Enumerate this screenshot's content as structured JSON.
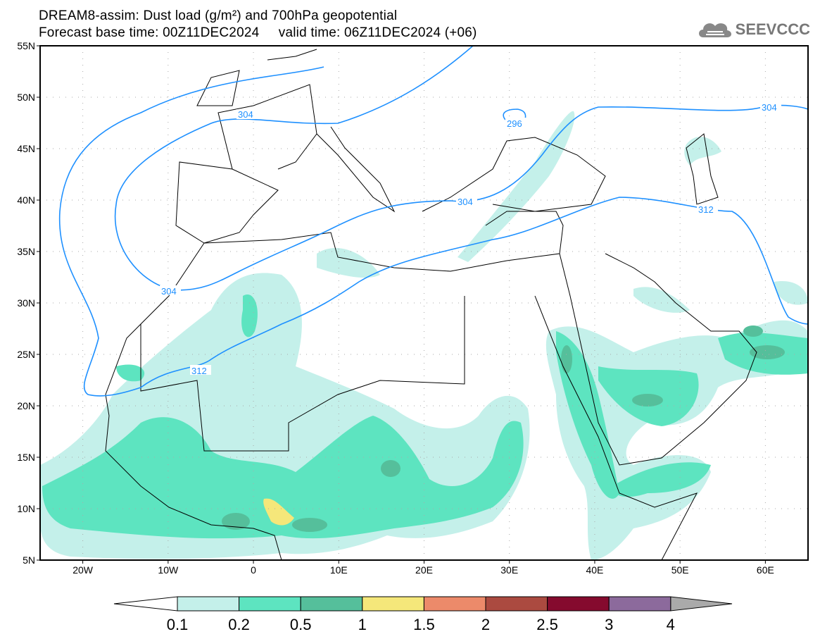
{
  "header": {
    "title": "DREAM8-assim: Dust load (g/m²) and 700hPa geopotential",
    "subtitle": "Forecast base time: 00Z11DEC2024     valid time: 06Z11DEC2024 (+06)",
    "logo_text": "SEEVCCC",
    "logo_icon": "cloud-icon"
  },
  "map": {
    "lat_range": [
      5,
      55
    ],
    "lon_range": [
      -25,
      65
    ],
    "lat_labels": [
      {
        "v": 55,
        "t": "55N"
      },
      {
        "v": 50,
        "t": "50N"
      },
      {
        "v": 45,
        "t": "45N"
      },
      {
        "v": 40,
        "t": "40N"
      },
      {
        "v": 35,
        "t": "35N"
      },
      {
        "v": 30,
        "t": "30N"
      },
      {
        "v": 25,
        "t": "25N"
      },
      {
        "v": 20,
        "t": "20N"
      },
      {
        "v": 15,
        "t": "15N"
      },
      {
        "v": 10,
        "t": "10N"
      },
      {
        "v": 5,
        "t": "5N"
      }
    ],
    "lon_labels": [
      {
        "v": -20,
        "t": "20W"
      },
      {
        "v": -10,
        "t": "10W"
      },
      {
        "v": 0,
        "t": "0"
      },
      {
        "v": 10,
        "t": "10E"
      },
      {
        "v": 20,
        "t": "20E"
      },
      {
        "v": 30,
        "t": "30E"
      },
      {
        "v": 40,
        "t": "40E"
      },
      {
        "v": 50,
        "t": "50E"
      },
      {
        "v": 60,
        "t": "60E"
      }
    ],
    "contour_labels": [
      "304",
      "304",
      "304",
      "296",
      "304",
      "312",
      "312"
    ],
    "contour_color": "#1e90ff"
  },
  "colorbar": {
    "labels": [
      "0.1",
      "0.2",
      "0.5",
      "1",
      "1.5",
      "2",
      "2.5",
      "3",
      "4"
    ],
    "colors": [
      "#c4f0ea",
      "#5de4c0",
      "#55bf9b",
      "#f5e77a",
      "#ec8a6a",
      "#ab4a40",
      "#850a2e",
      "#8c6a9c"
    ],
    "under_color": "#ffffff",
    "over_color": "#aaaaaa"
  }
}
